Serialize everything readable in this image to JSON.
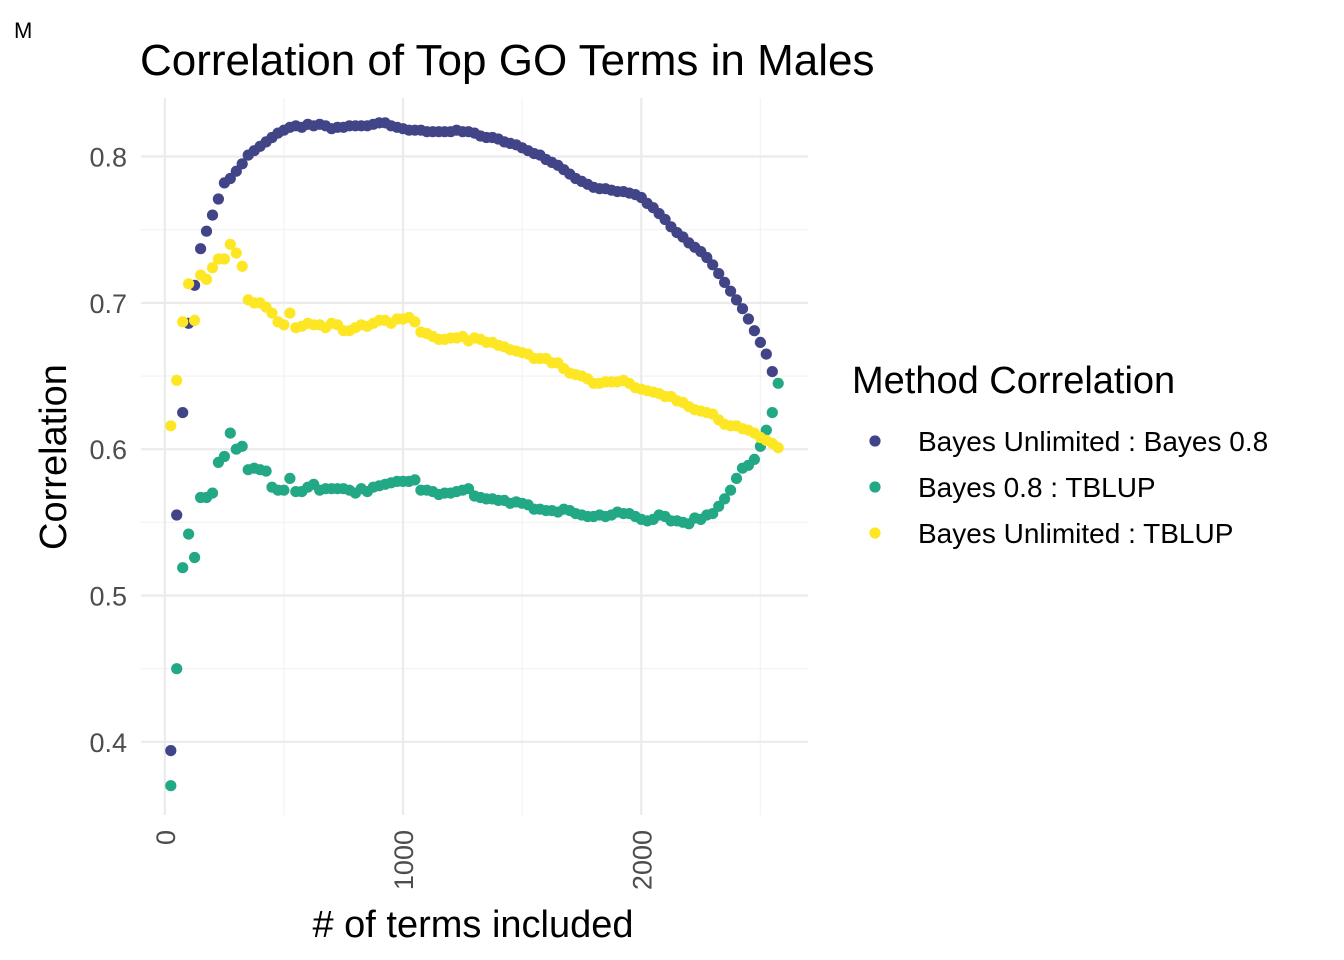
{
  "panel_tag": "M",
  "chart_data": {
    "type": "scatter",
    "title": "Correlation of Top GO Terms in Males",
    "xlabel": "# of terms included",
    "ylabel": "Correlation",
    "xlim": [
      -100,
      2700
    ],
    "ylim": [
      0.35,
      0.84
    ],
    "x_ticks": [
      0,
      1000,
      2000
    ],
    "x_tick_labels": [
      "0",
      "1000",
      "2000"
    ],
    "x_minor_ticks": [
      500,
      1500,
      2500
    ],
    "y_ticks": [
      0.4,
      0.5,
      0.6,
      0.7,
      0.8
    ],
    "y_tick_labels": [
      "0.4",
      "0.5",
      "0.6",
      "0.7",
      "0.8"
    ],
    "y_minor_ticks": [
      0.45,
      0.55,
      0.65,
      0.75
    ],
    "grid": true,
    "legend": {
      "title": "Method Correlation",
      "position": "right"
    },
    "series": [
      {
        "name": "Bayes Unlimited : Bayes 0.8",
        "color": "#414487",
        "points": [
          [
            25,
            0.394
          ],
          [
            50,
            0.555
          ],
          [
            75,
            0.625
          ],
          [
            100,
            0.686
          ],
          [
            125,
            0.712
          ],
          [
            150,
            0.737
          ],
          [
            175,
            0.749
          ],
          [
            200,
            0.76
          ],
          [
            225,
            0.771
          ],
          [
            250,
            0.782
          ],
          [
            275,
            0.785
          ],
          [
            300,
            0.79
          ],
          [
            325,
            0.795
          ],
          [
            350,
            0.801
          ],
          [
            375,
            0.804
          ],
          [
            400,
            0.807
          ],
          [
            425,
            0.81
          ],
          [
            450,
            0.813
          ],
          [
            475,
            0.816
          ],
          [
            500,
            0.818
          ],
          [
            525,
            0.82
          ],
          [
            550,
            0.821
          ],
          [
            575,
            0.82
          ],
          [
            600,
            0.822
          ],
          [
            625,
            0.821
          ],
          [
            650,
            0.822
          ],
          [
            675,
            0.821
          ],
          [
            700,
            0.819
          ],
          [
            725,
            0.82
          ],
          [
            750,
            0.82
          ],
          [
            775,
            0.821
          ],
          [
            800,
            0.821
          ],
          [
            825,
            0.821
          ],
          [
            850,
            0.821
          ],
          [
            875,
            0.822
          ],
          [
            900,
            0.823
          ],
          [
            925,
            0.823
          ],
          [
            950,
            0.821
          ],
          [
            975,
            0.82
          ],
          [
            1000,
            0.819
          ],
          [
            1025,
            0.818
          ],
          [
            1050,
            0.818
          ],
          [
            1075,
            0.818
          ],
          [
            1100,
            0.817
          ],
          [
            1125,
            0.817
          ],
          [
            1150,
            0.817
          ],
          [
            1175,
            0.817
          ],
          [
            1200,
            0.817
          ],
          [
            1225,
            0.818
          ],
          [
            1250,
            0.817
          ],
          [
            1275,
            0.817
          ],
          [
            1300,
            0.816
          ],
          [
            1325,
            0.814
          ],
          [
            1350,
            0.813
          ],
          [
            1375,
            0.813
          ],
          [
            1400,
            0.812
          ],
          [
            1425,
            0.81
          ],
          [
            1450,
            0.809
          ],
          [
            1475,
            0.808
          ],
          [
            1500,
            0.806
          ],
          [
            1525,
            0.804
          ],
          [
            1550,
            0.802
          ],
          [
            1575,
            0.801
          ],
          [
            1600,
            0.798
          ],
          [
            1625,
            0.796
          ],
          [
            1650,
            0.794
          ],
          [
            1675,
            0.791
          ],
          [
            1700,
            0.788
          ],
          [
            1725,
            0.785
          ],
          [
            1750,
            0.783
          ],
          [
            1775,
            0.781
          ],
          [
            1800,
            0.779
          ],
          [
            1825,
            0.778
          ],
          [
            1850,
            0.778
          ],
          [
            1875,
            0.777
          ],
          [
            1900,
            0.776
          ],
          [
            1925,
            0.776
          ],
          [
            1950,
            0.775
          ],
          [
            1975,
            0.774
          ],
          [
            2000,
            0.772
          ],
          [
            2025,
            0.768
          ],
          [
            2050,
            0.765
          ],
          [
            2075,
            0.761
          ],
          [
            2100,
            0.757
          ],
          [
            2125,
            0.752
          ],
          [
            2150,
            0.748
          ],
          [
            2175,
            0.745
          ],
          [
            2200,
            0.741
          ],
          [
            2225,
            0.738
          ],
          [
            2250,
            0.735
          ],
          [
            2275,
            0.731
          ],
          [
            2300,
            0.726
          ],
          [
            2325,
            0.72
          ],
          [
            2350,
            0.714
          ],
          [
            2375,
            0.708
          ],
          [
            2400,
            0.702
          ],
          [
            2425,
            0.696
          ],
          [
            2450,
            0.689
          ],
          [
            2475,
            0.681
          ],
          [
            2500,
            0.673
          ],
          [
            2525,
            0.665
          ],
          [
            2550,
            0.653
          ]
        ]
      },
      {
        "name": "Bayes 0.8 : TBLUP",
        "color": "#22A884",
        "points": [
          [
            25,
            0.37
          ],
          [
            50,
            0.45
          ],
          [
            75,
            0.519
          ],
          [
            100,
            0.542
          ],
          [
            125,
            0.526
          ],
          [
            150,
            0.567
          ],
          [
            175,
            0.567
          ],
          [
            200,
            0.57
          ],
          [
            225,
            0.591
          ],
          [
            250,
            0.595
          ],
          [
            275,
            0.611
          ],
          [
            300,
            0.6
          ],
          [
            325,
            0.602
          ],
          [
            350,
            0.586
          ],
          [
            375,
            0.587
          ],
          [
            400,
            0.586
          ],
          [
            425,
            0.585
          ],
          [
            450,
            0.574
          ],
          [
            475,
            0.572
          ],
          [
            500,
            0.572
          ],
          [
            525,
            0.58
          ],
          [
            550,
            0.571
          ],
          [
            575,
            0.571
          ],
          [
            600,
            0.574
          ],
          [
            625,
            0.576
          ],
          [
            650,
            0.572
          ],
          [
            675,
            0.573
          ],
          [
            700,
            0.573
          ],
          [
            725,
            0.573
          ],
          [
            750,
            0.573
          ],
          [
            775,
            0.572
          ],
          [
            800,
            0.57
          ],
          [
            825,
            0.573
          ],
          [
            850,
            0.571
          ],
          [
            875,
            0.574
          ],
          [
            900,
            0.575
          ],
          [
            925,
            0.576
          ],
          [
            950,
            0.577
          ],
          [
            975,
            0.578
          ],
          [
            1000,
            0.578
          ],
          [
            1025,
            0.578
          ],
          [
            1050,
            0.579
          ],
          [
            1075,
            0.572
          ],
          [
            1100,
            0.572
          ],
          [
            1125,
            0.571
          ],
          [
            1150,
            0.569
          ],
          [
            1175,
            0.57
          ],
          [
            1200,
            0.57
          ],
          [
            1225,
            0.571
          ],
          [
            1250,
            0.572
          ],
          [
            1275,
            0.573
          ],
          [
            1300,
            0.568
          ],
          [
            1325,
            0.567
          ],
          [
            1350,
            0.566
          ],
          [
            1375,
            0.566
          ],
          [
            1400,
            0.565
          ],
          [
            1425,
            0.565
          ],
          [
            1450,
            0.563
          ],
          [
            1475,
            0.564
          ],
          [
            1500,
            0.563
          ],
          [
            1525,
            0.562
          ],
          [
            1550,
            0.559
          ],
          [
            1575,
            0.559
          ],
          [
            1600,
            0.558
          ],
          [
            1625,
            0.558
          ],
          [
            1650,
            0.557
          ],
          [
            1675,
            0.559
          ],
          [
            1700,
            0.558
          ],
          [
            1725,
            0.556
          ],
          [
            1750,
            0.555
          ],
          [
            1775,
            0.554
          ],
          [
            1800,
            0.554
          ],
          [
            1825,
            0.555
          ],
          [
            1850,
            0.554
          ],
          [
            1875,
            0.555
          ],
          [
            1900,
            0.557
          ],
          [
            1925,
            0.556
          ],
          [
            1950,
            0.556
          ],
          [
            1975,
            0.554
          ],
          [
            2000,
            0.552
          ],
          [
            2025,
            0.551
          ],
          [
            2050,
            0.552
          ],
          [
            2075,
            0.555
          ],
          [
            2100,
            0.554
          ],
          [
            2125,
            0.551
          ],
          [
            2150,
            0.551
          ],
          [
            2175,
            0.55
          ],
          [
            2200,
            0.549
          ],
          [
            2225,
            0.553
          ],
          [
            2250,
            0.552
          ],
          [
            2275,
            0.555
          ],
          [
            2300,
            0.556
          ],
          [
            2325,
            0.561
          ],
          [
            2350,
            0.566
          ],
          [
            2375,
            0.572
          ],
          [
            2400,
            0.58
          ],
          [
            2425,
            0.587
          ],
          [
            2450,
            0.589
          ],
          [
            2475,
            0.593
          ],
          [
            2500,
            0.602
          ],
          [
            2525,
            0.613
          ],
          [
            2550,
            0.625
          ],
          [
            2575,
            0.645
          ]
        ]
      },
      {
        "name": "Bayes Unlimited : TBLUP",
        "color": "#FDE725",
        "points": [
          [
            25,
            0.616
          ],
          [
            50,
            0.647
          ],
          [
            75,
            0.687
          ],
          [
            100,
            0.713
          ],
          [
            125,
            0.688
          ],
          [
            150,
            0.719
          ],
          [
            175,
            0.716
          ],
          [
            200,
            0.724
          ],
          [
            225,
            0.73
          ],
          [
            250,
            0.73
          ],
          [
            275,
            0.74
          ],
          [
            300,
            0.734
          ],
          [
            325,
            0.725
          ],
          [
            350,
            0.702
          ],
          [
            375,
            0.7
          ],
          [
            400,
            0.7
          ],
          [
            425,
            0.697
          ],
          [
            450,
            0.693
          ],
          [
            475,
            0.687
          ],
          [
            500,
            0.685
          ],
          [
            525,
            0.693
          ],
          [
            550,
            0.683
          ],
          [
            575,
            0.684
          ],
          [
            600,
            0.686
          ],
          [
            625,
            0.685
          ],
          [
            650,
            0.685
          ],
          [
            675,
            0.683
          ],
          [
            700,
            0.686
          ],
          [
            725,
            0.685
          ],
          [
            750,
            0.681
          ],
          [
            775,
            0.681
          ],
          [
            800,
            0.683
          ],
          [
            825,
            0.685
          ],
          [
            850,
            0.684
          ],
          [
            875,
            0.686
          ],
          [
            900,
            0.688
          ],
          [
            925,
            0.688
          ],
          [
            950,
            0.686
          ],
          [
            975,
            0.689
          ],
          [
            1000,
            0.689
          ],
          [
            1025,
            0.69
          ],
          [
            1050,
            0.687
          ],
          [
            1075,
            0.68
          ],
          [
            1100,
            0.679
          ],
          [
            1125,
            0.677
          ],
          [
            1150,
            0.675
          ],
          [
            1175,
            0.675
          ],
          [
            1200,
            0.676
          ],
          [
            1225,
            0.676
          ],
          [
            1250,
            0.677
          ],
          [
            1275,
            0.674
          ],
          [
            1300,
            0.676
          ],
          [
            1325,
            0.675
          ],
          [
            1350,
            0.673
          ],
          [
            1375,
            0.673
          ],
          [
            1400,
            0.671
          ],
          [
            1425,
            0.67
          ],
          [
            1450,
            0.668
          ],
          [
            1475,
            0.667
          ],
          [
            1500,
            0.666
          ],
          [
            1525,
            0.665
          ],
          [
            1550,
            0.662
          ],
          [
            1575,
            0.662
          ],
          [
            1600,
            0.662
          ],
          [
            1625,
            0.659
          ],
          [
            1650,
            0.659
          ],
          [
            1675,
            0.655
          ],
          [
            1700,
            0.652
          ],
          [
            1725,
            0.651
          ],
          [
            1750,
            0.65
          ],
          [
            1775,
            0.648
          ],
          [
            1800,
            0.645
          ],
          [
            1825,
            0.645
          ],
          [
            1850,
            0.646
          ],
          [
            1875,
            0.646
          ],
          [
            1900,
            0.646
          ],
          [
            1925,
            0.647
          ],
          [
            1950,
            0.645
          ],
          [
            1975,
            0.642
          ],
          [
            2000,
            0.641
          ],
          [
            2025,
            0.64
          ],
          [
            2050,
            0.639
          ],
          [
            2075,
            0.638
          ],
          [
            2100,
            0.636
          ],
          [
            2125,
            0.636
          ],
          [
            2150,
            0.633
          ],
          [
            2175,
            0.632
          ],
          [
            2200,
            0.629
          ],
          [
            2225,
            0.627
          ],
          [
            2250,
            0.626
          ],
          [
            2275,
            0.625
          ],
          [
            2300,
            0.624
          ],
          [
            2325,
            0.62
          ],
          [
            2350,
            0.617
          ],
          [
            2375,
            0.616
          ],
          [
            2400,
            0.616
          ],
          [
            2425,
            0.614
          ],
          [
            2450,
            0.613
          ],
          [
            2475,
            0.611
          ],
          [
            2500,
            0.608
          ],
          [
            2525,
            0.606
          ],
          [
            2550,
            0.604
          ],
          [
            2575,
            0.601
          ]
        ]
      }
    ]
  }
}
